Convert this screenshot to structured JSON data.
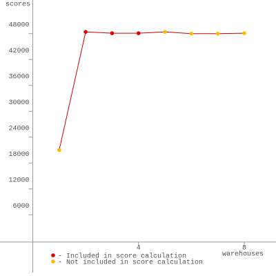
{
  "chart_data": {
    "type": "line",
    "y_label": "scores",
    "x_label": "warehouses",
    "series": [
      {
        "name": "- Included in score calculation",
        "color": "#dd0000",
        "values": [
          null,
          48400,
          48100,
          48100,
          null,
          null,
          null,
          null
        ]
      },
      {
        "name": "- Not included in score calculation",
        "color": "#ffbb00",
        "values": [
          21000,
          null,
          null,
          null,
          48400,
          48000,
          48000,
          48100
        ]
      }
    ],
    "x": [
      1,
      2,
      3,
      4,
      5,
      6,
      7,
      8
    ],
    "line_color": "#cc0000",
    "xlim": [
      0,
      9.2
    ],
    "xticks": [
      4,
      8
    ],
    "ylim": [
      -7400,
      55800
    ],
    "yticks": [
      6000,
      12000,
      18000,
      24000,
      30000,
      36000,
      42000,
      48000
    ],
    "legend": "bottom-left"
  }
}
